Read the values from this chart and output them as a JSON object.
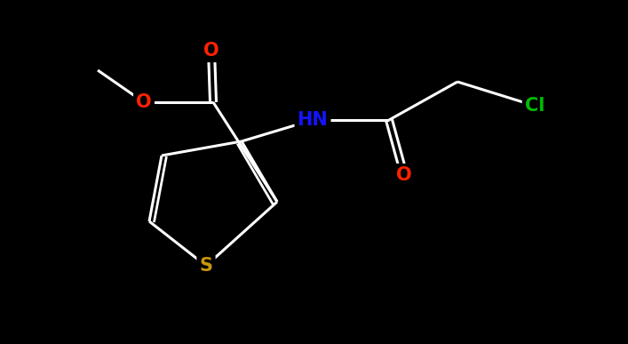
{
  "bg_color": "#000000",
  "bond_color": "#ffffff",
  "bond_width": 2.2,
  "atom_colors": {
    "O": "#ff2200",
    "S": "#c8960c",
    "N": "#1414ff",
    "Cl": "#00bb00",
    "C": "#ffffff"
  },
  "font_size": 15,
  "figsize": [
    7.07,
    3.87
  ],
  "dpi": 100,
  "xlim": [
    0.0,
    7.07
  ],
  "ylim": [
    0.0,
    3.87
  ]
}
